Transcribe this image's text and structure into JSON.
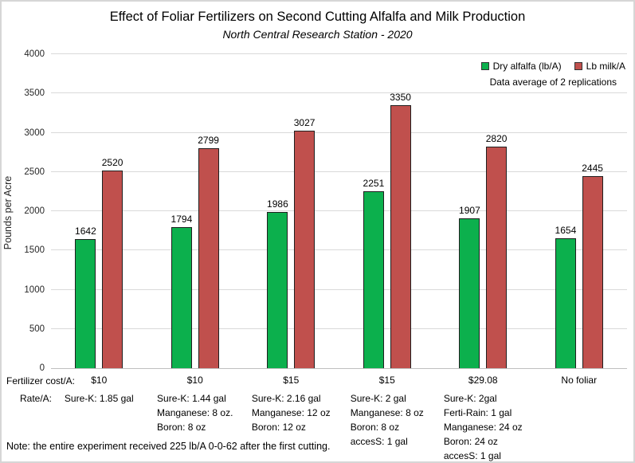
{
  "title": "Effect of Foliar Fertilizers on Second Cutting Alfalfa and Milk Production",
  "subtitle": "North Central Research Station - 2020",
  "chart_data": {
    "type": "bar",
    "title": "Effect of Foliar Fertilizers on Second Cutting Alfalfa and Milk Production",
    "subtitle": "North Central Research Station - 2020",
    "ylabel": "Pounds per Acre",
    "ylim": [
      0,
      4000
    ],
    "ytick_step": 500,
    "grid": true,
    "legend_position": "top-right",
    "annotation": "Data average of 2 replications",
    "categories": [
      "$10",
      "$10",
      "$15",
      "$15",
      "$29.08",
      "No foliar"
    ],
    "series": [
      {
        "id": "dry-alfalfa",
        "name": "Dry alfalfa (lb/A)",
        "color": "#0cb04d",
        "values": [
          1642,
          1794,
          1986,
          2251,
          1907,
          1654
        ]
      },
      {
        "id": "lb-milk",
        "name": "Lb milk/A",
        "color": "#c0504d",
        "values": [
          2520,
          2799,
          3027,
          3350,
          2820,
          2445
        ]
      }
    ]
  },
  "footer": {
    "cost_label": "Fertilizer cost/A:",
    "rate_label": "Rate/A:",
    "rates": [
      [
        "Sure-K: 1.85 gal"
      ],
      [
        "Sure-K: 1.44 gal",
        "Manganese: 8 oz.",
        "Boron: 8 oz"
      ],
      [
        "Sure-K: 2.16 gal",
        "Manganese: 12 oz",
        "Boron: 12 oz"
      ],
      [
        "Sure-K: 2 gal",
        "Manganese: 8 oz",
        "Boron: 8 oz",
        "accesS: 1 gal"
      ],
      [
        "Sure-K: 2gal",
        "Ferti-Rain: 1 gal",
        "Manganese: 24 oz",
        "Boron: 24 oz",
        "accesS: 1 gal"
      ],
      []
    ],
    "note": "Note: the entire experiment received 225 lb/A 0-0-62 after the first cutting."
  }
}
